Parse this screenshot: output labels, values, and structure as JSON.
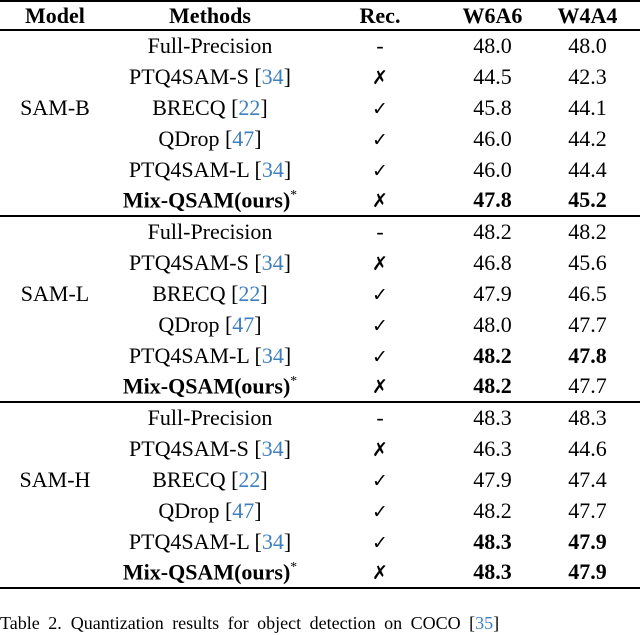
{
  "colors": {
    "citation_blue": "#3E7FC1",
    "text": "#000000",
    "background": "#FFFFFF",
    "rule": "#000000"
  },
  "punct": {
    "cite_open": " [",
    "cite_close": "]"
  },
  "table": {
    "headers": [
      "Model",
      "Methods",
      "Rec.",
      "W6A6",
      "W4A4"
    ],
    "sections": [
      {
        "model": "SAM-B",
        "rows": [
          {
            "method": "Full-Precision",
            "rec": "-",
            "w6a6": "48.0",
            "w4a4": "48.0"
          },
          {
            "method": "PTQ4SAM-S",
            "cite": "34",
            "rec": "✗",
            "w6a6": "44.5",
            "w4a4": "42.3"
          },
          {
            "method": "BRECQ",
            "cite": "22",
            "rec": "✓",
            "w6a6": "45.8",
            "w4a4": "44.1"
          },
          {
            "method": "QDrop",
            "cite": "47",
            "rec": "✓",
            "w6a6": "46.0",
            "w4a4": "44.2"
          },
          {
            "method": "PTQ4SAM-L",
            "cite": "34",
            "rec": "✓",
            "w6a6": "46.0",
            "w4a4": "44.4"
          },
          {
            "method": "Mix-QSAM(ours)",
            "star": "*",
            "bold_method": true,
            "rec": "✗",
            "w6a6": "47.8",
            "w4a4": "45.2",
            "bold_w6a6": true,
            "bold_w4a4": true
          }
        ]
      },
      {
        "model": "SAM-L",
        "rows": [
          {
            "method": "Full-Precision",
            "rec": "-",
            "w6a6": "48.2",
            "w4a4": "48.2"
          },
          {
            "method": "PTQ4SAM-S",
            "cite": "34",
            "rec": "✗",
            "w6a6": "46.8",
            "w4a4": "45.6"
          },
          {
            "method": "BRECQ",
            "cite": "22",
            "rec": "✓",
            "w6a6": "47.9",
            "w4a4": "46.5"
          },
          {
            "method": "QDrop",
            "cite": "47",
            "rec": "✓",
            "w6a6": "48.0",
            "w4a4": "47.7"
          },
          {
            "method": "PTQ4SAM-L",
            "cite": "34",
            "rec": "✓",
            "w6a6": "48.2",
            "w4a4": "47.8",
            "bold_w6a6": true,
            "bold_w4a4": true
          },
          {
            "method": "Mix-QSAM(ours)",
            "star": "*",
            "bold_method": true,
            "rec": "✗",
            "w6a6": "48.2",
            "w4a4": "47.7",
            "bold_w6a6": true
          }
        ]
      },
      {
        "model": "SAM-H",
        "rows": [
          {
            "method": "Full-Precision",
            "rec": "-",
            "w6a6": "48.3",
            "w4a4": "48.3"
          },
          {
            "method": "PTQ4SAM-S",
            "cite": "34",
            "rec": "✗",
            "w6a6": "46.3",
            "w4a4": "44.6"
          },
          {
            "method": "BRECQ",
            "cite": "22",
            "rec": "✓",
            "w6a6": "47.9",
            "w4a4": "47.4"
          },
          {
            "method": "QDrop",
            "cite": "47",
            "rec": "✓",
            "w6a6": "48.2",
            "w4a4": "47.7"
          },
          {
            "method": "PTQ4SAM-L",
            "cite": "34",
            "rec": "✓",
            "w6a6": "48.3",
            "w4a4": "47.9",
            "bold_w6a6": true,
            "bold_w4a4": true
          },
          {
            "method": "Mix-QSAM(ours)",
            "star": "*",
            "bold_method": true,
            "rec": "✗",
            "w6a6": "48.3",
            "w4a4": "47.9",
            "bold_w6a6": true,
            "bold_w4a4": true
          }
        ]
      }
    ]
  },
  "caption": {
    "label": "Table 2.",
    "text": "Quantization results for object detection on COCO",
    "cite": "35"
  }
}
